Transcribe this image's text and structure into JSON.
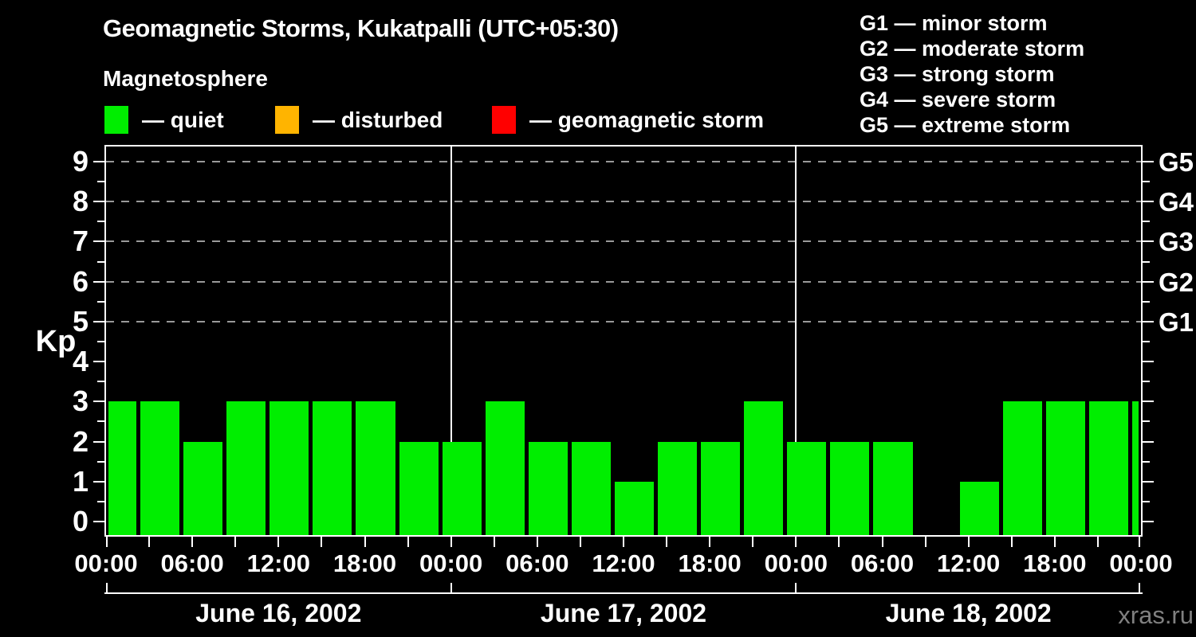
{
  "header": {
    "title": "Geomagnetic Storms, Kukatpalli (UTC+05:30)",
    "subtitle": "Magnetosphere"
  },
  "legend": {
    "items": [
      {
        "key": "quiet",
        "label": "— quiet",
        "color": "#00ee00"
      },
      {
        "key": "disturbed",
        "label": "— disturbed",
        "color": "#ffb400"
      },
      {
        "key": "storm",
        "label": "— geomagnetic storm",
        "color": "#ff0000"
      }
    ]
  },
  "storm_scale": {
    "items": [
      "G1 — minor storm",
      "G2 — moderate storm",
      "G3 — strong storm",
      "G4 — severe storm",
      "G5 — extreme storm"
    ]
  },
  "watermark": "xras.ru",
  "chart_data": {
    "type": "bar",
    "title": "Geomagnetic Storms, Kukatpalli (UTC+05:30)",
    "xlabel": "",
    "ylabel": "Kp",
    "ylim": [
      0,
      9
    ],
    "grid": "dashed horizontal at Kp 5-9",
    "background": "#000000",
    "axis_color": "#ffffff",
    "gridline_color": "#9a9a9a",
    "bar_color": "#00ee00",
    "y_major_ticks": [
      0,
      1,
      2,
      3,
      4,
      5,
      6,
      7,
      8,
      9
    ],
    "y_minor_ticks": [
      0.5,
      1.5,
      2.5,
      3.5,
      4.5,
      5.5,
      6.5,
      7.5,
      8.5
    ],
    "gridlines_at": [
      5,
      6,
      7,
      8,
      9
    ],
    "right_axis": [
      {
        "kp": 9,
        "label": "G5"
      },
      {
        "kp": 8,
        "label": "G4"
      },
      {
        "kp": 7,
        "label": "G3"
      },
      {
        "kp": 6,
        "label": "G2"
      },
      {
        "kp": 5,
        "label": "G1"
      }
    ],
    "x_total_hours": 72,
    "x_tick_every_hours": 3,
    "x_labels": [
      {
        "h": 0,
        "label": "00:00"
      },
      {
        "h": 6,
        "label": "06:00"
      },
      {
        "h": 12,
        "label": "12:00"
      },
      {
        "h": 18,
        "label": "18:00"
      },
      {
        "h": 24,
        "label": "00:00"
      },
      {
        "h": 30,
        "label": "06:00"
      },
      {
        "h": 36,
        "label": "12:00"
      },
      {
        "h": 42,
        "label": "18:00"
      },
      {
        "h": 48,
        "label": "00:00"
      },
      {
        "h": 54,
        "label": "06:00"
      },
      {
        "h": 60,
        "label": "12:00"
      },
      {
        "h": 66,
        "label": "18:00"
      },
      {
        "h": 72,
        "label": "00:00"
      }
    ],
    "days": [
      {
        "label": "June 16, 2002",
        "start_h": 0,
        "end_h": 24
      },
      {
        "label": "June 17, 2002",
        "start_h": 24,
        "end_h": 48
      },
      {
        "label": "June 18, 2002",
        "start_h": 48,
        "end_h": 72
      }
    ],
    "bars": [
      {
        "start_h": 0,
        "end_h": 2.25,
        "kp": 3,
        "condition": "quiet"
      },
      {
        "start_h": 2.25,
        "end_h": 5.25,
        "kp": 3,
        "condition": "quiet"
      },
      {
        "start_h": 5.25,
        "end_h": 8.25,
        "kp": 2,
        "condition": "quiet"
      },
      {
        "start_h": 8.25,
        "end_h": 11.25,
        "kp": 3,
        "condition": "quiet"
      },
      {
        "start_h": 11.25,
        "end_h": 14.25,
        "kp": 3,
        "condition": "quiet"
      },
      {
        "start_h": 14.25,
        "end_h": 17.25,
        "kp": 3,
        "condition": "quiet"
      },
      {
        "start_h": 17.25,
        "end_h": 20.25,
        "kp": 3,
        "condition": "quiet"
      },
      {
        "start_h": 20.25,
        "end_h": 23.25,
        "kp": 2,
        "condition": "quiet"
      },
      {
        "start_h": 23.25,
        "end_h": 26.25,
        "kp": 2,
        "condition": "quiet"
      },
      {
        "start_h": 26.25,
        "end_h": 29.25,
        "kp": 3,
        "condition": "quiet"
      },
      {
        "start_h": 29.25,
        "end_h": 32.25,
        "kp": 2,
        "condition": "quiet"
      },
      {
        "start_h": 32.25,
        "end_h": 35.25,
        "kp": 2,
        "condition": "quiet"
      },
      {
        "start_h": 35.25,
        "end_h": 38.25,
        "kp": 1,
        "condition": "quiet"
      },
      {
        "start_h": 38.25,
        "end_h": 41.25,
        "kp": 2,
        "condition": "quiet"
      },
      {
        "start_h": 41.25,
        "end_h": 44.25,
        "kp": 2,
        "condition": "quiet"
      },
      {
        "start_h": 44.25,
        "end_h": 47.25,
        "kp": 3,
        "condition": "quiet"
      },
      {
        "start_h": 47.25,
        "end_h": 50.25,
        "kp": 2,
        "condition": "quiet"
      },
      {
        "start_h": 50.25,
        "end_h": 53.25,
        "kp": 2,
        "condition": "quiet"
      },
      {
        "start_h": 53.25,
        "end_h": 56.25,
        "kp": 2,
        "condition": "quiet"
      },
      {
        "start_h": 56.25,
        "end_h": 59.25,
        "kp": 0,
        "condition": "quiet"
      },
      {
        "start_h": 59.25,
        "end_h": 62.25,
        "kp": 1,
        "condition": "quiet"
      },
      {
        "start_h": 62.25,
        "end_h": 65.25,
        "kp": 3,
        "condition": "quiet"
      },
      {
        "start_h": 65.25,
        "end_h": 68.25,
        "kp": 3,
        "condition": "quiet"
      },
      {
        "start_h": 68.25,
        "end_h": 71.25,
        "kp": 3,
        "condition": "quiet"
      },
      {
        "start_h": 71.25,
        "end_h": 72,
        "kp": 3,
        "condition": "quiet"
      }
    ]
  }
}
